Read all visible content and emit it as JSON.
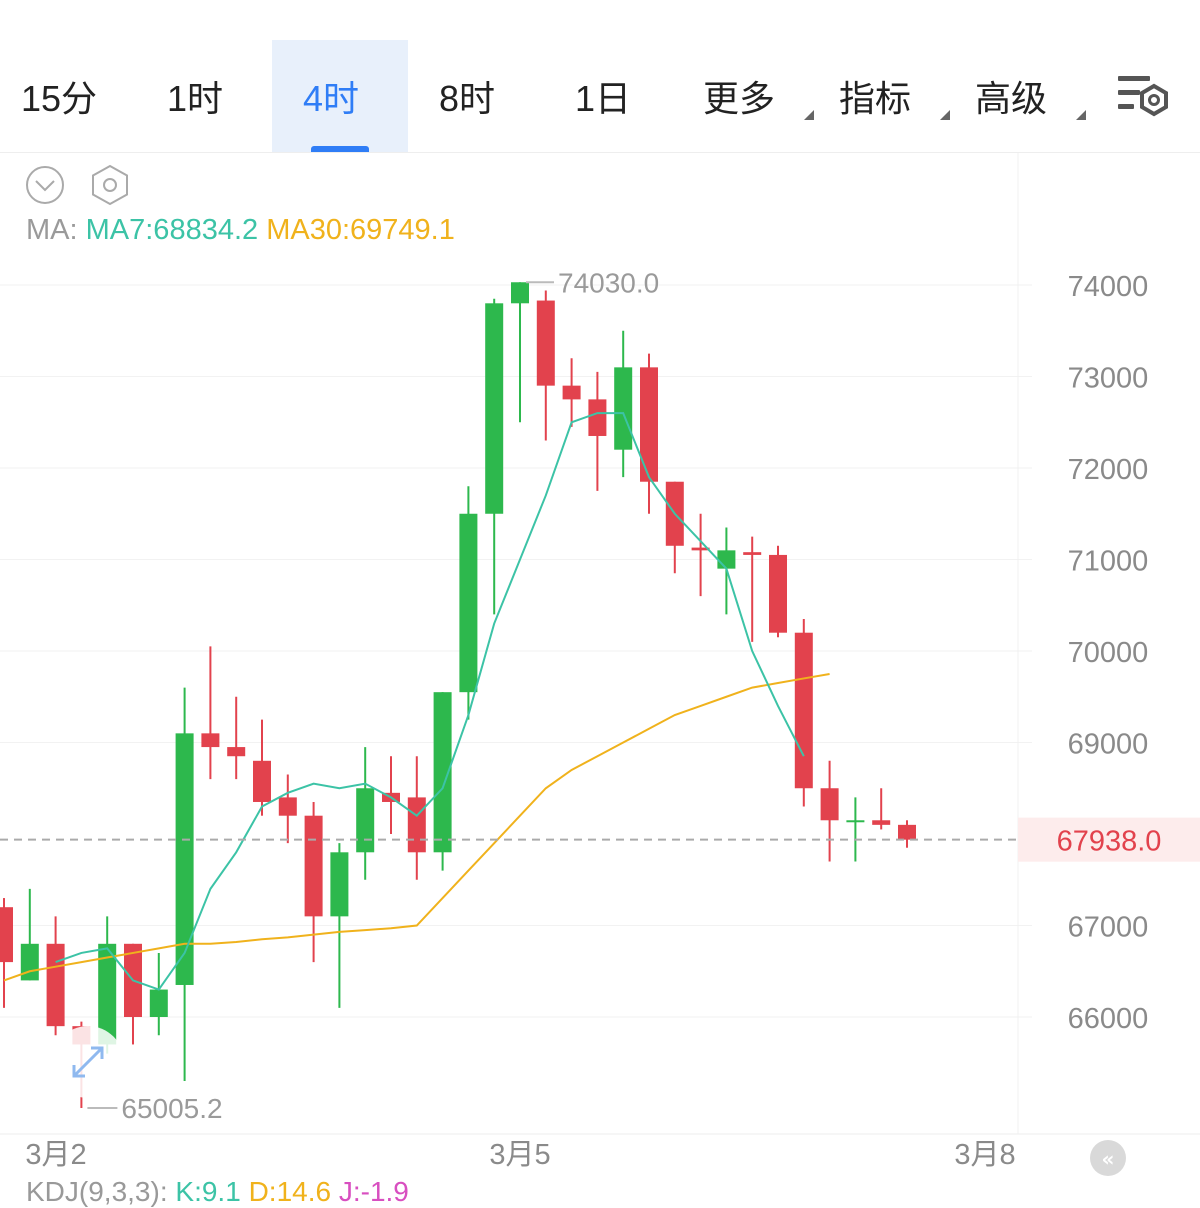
{
  "tabs": [
    {
      "label": "15分",
      "active": false
    },
    {
      "label": "1时",
      "active": false
    },
    {
      "label": "4时",
      "active": true
    },
    {
      "label": "8时",
      "active": false
    },
    {
      "label": "1日",
      "active": false
    },
    {
      "label": "更多",
      "active": false,
      "dropdown": true
    },
    {
      "label": "指标",
      "active": false,
      "dropdown": true
    },
    {
      "label": "高级",
      "active": false,
      "dropdown": true
    }
  ],
  "settings_icon": "chart-settings-icon",
  "toolbar_icons": [
    "chevron-down-circle-icon",
    "hexagon-settings-icon"
  ],
  "indicator": {
    "label": "MA:",
    "ma7": "MA7:68834.2",
    "ma30": "MA30:69749.1"
  },
  "kdj": {
    "label": "KDJ(9,3,3):",
    "k": "K:9.1",
    "d": "D:14.6",
    "j": "J:-1.9"
  },
  "colors": {
    "up": "#2db84d",
    "down": "#e2424d",
    "ma7": "#3cc3a6",
    "ma30": "#f0b21c",
    "accent": "#2f7df6"
  },
  "chart_data": {
    "type": "candlestick",
    "y_ticks": [
      74000,
      73000,
      72000,
      71000,
      70000,
      69000,
      67000,
      66000
    ],
    "y_range": [
      64700,
      74300
    ],
    "x_labels": [
      {
        "label": "3月2",
        "index": 1
      },
      {
        "label": "3月5",
        "index": 19
      },
      {
        "label": "3月8",
        "index": 37
      }
    ],
    "high_label": "74030.0",
    "low_label": "65005.2",
    "last_price": "67938.0",
    "last_price_value": 67938,
    "candles": [
      {
        "o": 67200,
        "h": 67300,
        "l": 66100,
        "c": 66600
      },
      {
        "o": 66400,
        "h": 67400,
        "l": 66400,
        "c": 66800
      },
      {
        "o": 66800,
        "h": 67100,
        "l": 65800,
        "c": 65900
      },
      {
        "o": 65900,
        "h": 65950,
        "l": 65005.2,
        "c": 65700
      },
      {
        "o": 65700,
        "h": 67100,
        "l": 65600,
        "c": 66800
      },
      {
        "o": 66800,
        "h": 66800,
        "l": 65700,
        "c": 66000
      },
      {
        "o": 66000,
        "h": 66700,
        "l": 65800,
        "c": 66300
      },
      {
        "o": 66350,
        "h": 69600,
        "l": 65300,
        "c": 69100
      },
      {
        "o": 69100,
        "h": 70050,
        "l": 68600,
        "c": 68950
      },
      {
        "o": 68950,
        "h": 69500,
        "l": 68600,
        "c": 68850
      },
      {
        "o": 68800,
        "h": 69250,
        "l": 68200,
        "c": 68350
      },
      {
        "o": 68400,
        "h": 68650,
        "l": 67900,
        "c": 68200
      },
      {
        "o": 68200,
        "h": 68350,
        "l": 66600,
        "c": 67100
      },
      {
        "o": 67100,
        "h": 67900,
        "l": 66100,
        "c": 67800
      },
      {
        "o": 67800,
        "h": 68950,
        "l": 67500,
        "c": 68500
      },
      {
        "o": 68450,
        "h": 68850,
        "l": 68000,
        "c": 68350
      },
      {
        "o": 68400,
        "h": 68850,
        "l": 67500,
        "c": 67800
      },
      {
        "o": 67800,
        "h": 69550,
        "l": 67600,
        "c": 69550
      },
      {
        "o": 69550,
        "h": 71800,
        "l": 69250,
        "c": 71500
      },
      {
        "o": 71500,
        "h": 73850,
        "l": 70400,
        "c": 73800
      },
      {
        "o": 73800,
        "h": 74030,
        "l": 72500,
        "c": 74030
      },
      {
        "o": 73830,
        "h": 73940,
        "l": 72300,
        "c": 72900
      },
      {
        "o": 72900,
        "h": 73200,
        "l": 72450,
        "c": 72750
      },
      {
        "o": 72750,
        "h": 73050,
        "l": 71750,
        "c": 72350
      },
      {
        "o": 72200,
        "h": 73500,
        "l": 71900,
        "c": 73100
      },
      {
        "o": 73100,
        "h": 73250,
        "l": 71500,
        "c": 71850
      },
      {
        "o": 71850,
        "h": 71850,
        "l": 70850,
        "c": 71150
      },
      {
        "o": 71130,
        "h": 71500,
        "l": 70600,
        "c": 71100
      },
      {
        "o": 70900,
        "h": 71350,
        "l": 70400,
        "c": 71100
      },
      {
        "o": 71080,
        "h": 71250,
        "l": 70100,
        "c": 71050
      },
      {
        "o": 71050,
        "h": 71150,
        "l": 70150,
        "c": 70200
      },
      {
        "o": 70200,
        "h": 70350,
        "l": 68300,
        "c": 68500
      },
      {
        "o": 68500,
        "h": 68800,
        "l": 67700,
        "c": 68150
      },
      {
        "o": 68150,
        "h": 68400,
        "l": 67700,
        "c": 68150
      },
      {
        "o": 68150,
        "h": 68500,
        "l": 68050,
        "c": 68100
      },
      {
        "o": 68100,
        "h": 68150,
        "l": 67850,
        "c": 67938
      }
    ],
    "ma7": [
      null,
      null,
      66600,
      66700,
      66750,
      66400,
      66300,
      66700,
      67400,
      67800,
      68300,
      68450,
      68550,
      68500,
      68550,
      68400,
      68200,
      68500,
      69300,
      70300,
      71000,
      71700,
      72500,
      72600,
      72600,
      71900,
      71500,
      71200,
      70900,
      70000,
      69400,
      68850
    ],
    "ma30": [
      66400,
      66500,
      66550,
      66600,
      66650,
      66700,
      66750,
      66800,
      66800,
      66820,
      66850,
      66870,
      66900,
      66930,
      66950,
      66970,
      67000,
      67300,
      67600,
      67900,
      68200,
      68500,
      68700,
      68850,
      69000,
      69150,
      69300,
      69400,
      69500,
      69600,
      69650,
      69700,
      69749
    ]
  }
}
